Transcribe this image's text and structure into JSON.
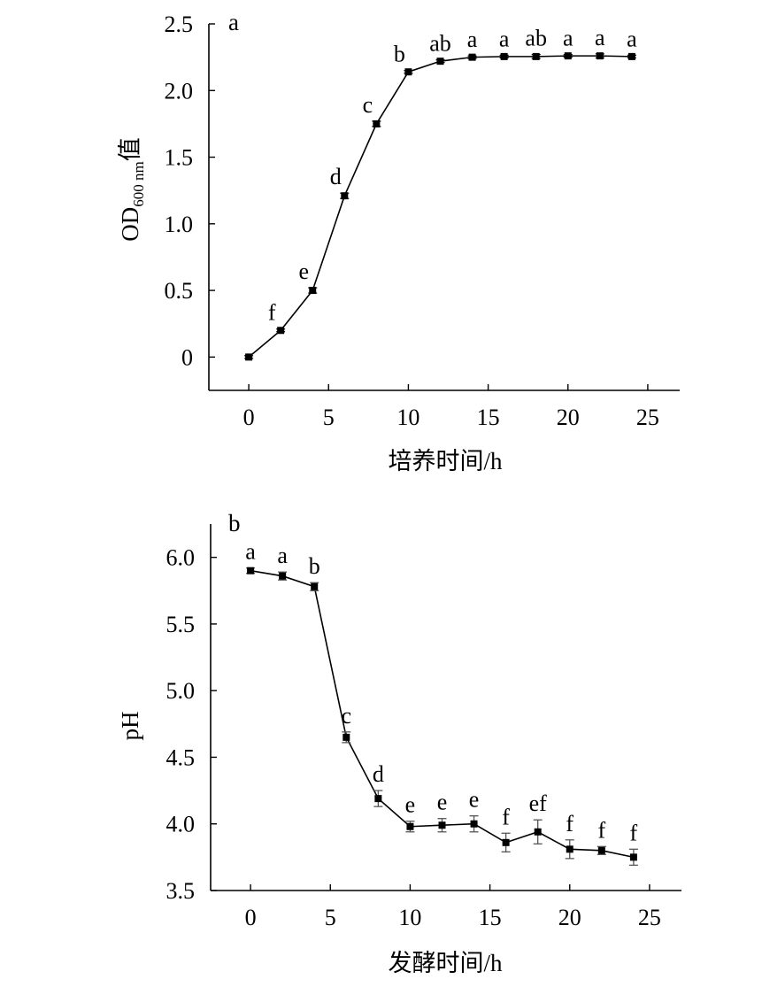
{
  "chart_data": [
    {
      "type": "line",
      "panel_label": "a",
      "xlabel": "培养时间/h",
      "ylabel_main": "OD",
      "ylabel_sub": "600 nm",
      "ylabel_suffix": "值",
      "xlim": [
        -2.5,
        27
      ],
      "ylim": [
        -0.25,
        2.5
      ],
      "xticks": [
        0,
        5,
        10,
        15,
        20,
        25
      ],
      "xtick_labels": [
        "0",
        "5",
        "10",
        "15",
        "20",
        "25"
      ],
      "yticks": [
        0,
        0.5,
        1.0,
        1.5,
        2.0,
        2.5
      ],
      "ytick_labels": [
        "0",
        "0.5",
        "1.0",
        "1.5",
        "2.0",
        "2.5"
      ],
      "x": [
        0,
        2,
        4,
        6,
        8,
        10,
        12,
        14,
        16,
        18,
        20,
        22,
        24
      ],
      "y": [
        0.0,
        0.2,
        0.5,
        1.21,
        1.75,
        2.14,
        2.22,
        2.25,
        2.255,
        2.255,
        2.26,
        2.26,
        2.255
      ],
      "err": [
        0.01,
        0.01,
        0.02,
        0.02,
        0.02,
        0.01,
        0.01,
        0.01,
        0.01,
        0.015,
        0.01,
        0.015,
        0.01
      ],
      "letters": [
        "",
        "f",
        "e",
        "d",
        "c",
        "b",
        "ab",
        "a",
        "a",
        "ab",
        "a",
        "a",
        "a"
      ]
    },
    {
      "type": "line",
      "panel_label": "b",
      "xlabel": "发酵时间/h",
      "ylabel": "pH",
      "xlim": [
        -2.5,
        27
      ],
      "ylim": [
        3.5,
        6.25
      ],
      "xticks": [
        0,
        5,
        10,
        15,
        20,
        25
      ],
      "xtick_labels": [
        "0",
        "5",
        "10",
        "15",
        "20",
        "25"
      ],
      "yticks": [
        3.5,
        4.0,
        4.5,
        5.0,
        5.5,
        6.0
      ],
      "ytick_labels": [
        "3.5",
        "4.0",
        "4.5",
        "5.0",
        "5.5",
        "6.0"
      ],
      "x": [
        0,
        2,
        4,
        6,
        8,
        10,
        12,
        14,
        16,
        18,
        20,
        22,
        24
      ],
      "y": [
        5.9,
        5.86,
        5.78,
        4.65,
        4.19,
        3.98,
        3.99,
        4.0,
        3.86,
        3.94,
        3.81,
        3.8,
        3.75
      ],
      "err": [
        0.02,
        0.03,
        0.03,
        0.04,
        0.06,
        0.04,
        0.05,
        0.06,
        0.07,
        0.09,
        0.07,
        0.03,
        0.06
      ],
      "letters": [
        "a",
        "a",
        "b",
        "c",
        "d",
        "e",
        "e",
        "e",
        "f",
        "ef",
        "f",
        "f",
        "f"
      ]
    }
  ]
}
